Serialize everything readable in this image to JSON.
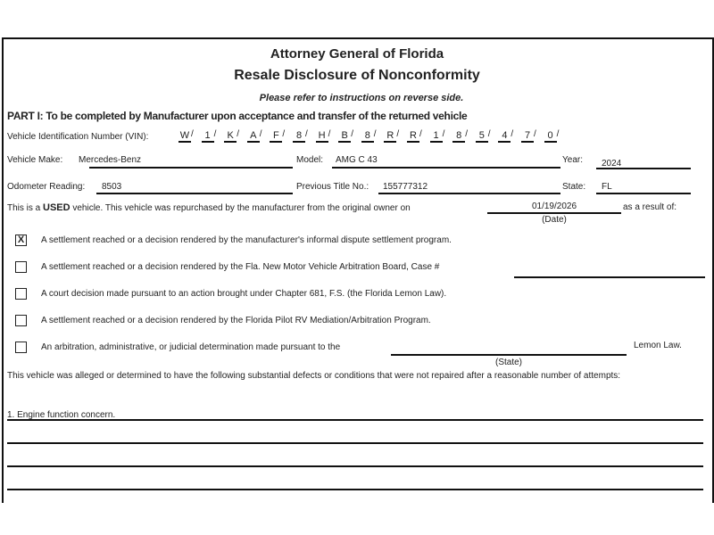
{
  "header": {
    "title": "Attorney General of Florida",
    "subtitle": "Resale Disclosure of Nonconformity",
    "note": "Please refer to instructions on reverse side."
  },
  "part1": "PART I: To be completed by Manufacturer upon acceptance and transfer of the returned vehicle",
  "vin": {
    "label": "Vehicle Identification Number (VIN):",
    "chars": [
      "W",
      "1",
      "K",
      "A",
      "F",
      "8",
      "H",
      "B",
      "8",
      "R",
      "R",
      "1",
      "8",
      "5",
      "4",
      "7",
      "0"
    ]
  },
  "make": {
    "label": "Vehicle Make:",
    "value": "Mercedes-Benz"
  },
  "model": {
    "label": "Model:",
    "value": "AMG C 43"
  },
  "year": {
    "label": "Year:",
    "value": "2024"
  },
  "odometer": {
    "label": "Odometer Reading:",
    "value": "8503"
  },
  "title_no": {
    "label": "Previous Title No.:",
    "value": "155777312"
  },
  "state": {
    "label": "State:",
    "value": "FL"
  },
  "used": {
    "pre": "This is a ",
    "bold": "USED",
    "post": " vehicle. This vehicle was repurchased by the manufacturer from the original owner on",
    "date": "01/19/2026",
    "date_label": "(Date)",
    "suffix": "as a result of:"
  },
  "options": [
    {
      "checked": true,
      "mark": "X",
      "text": "A settlement reached or a decision rendered by the manufacturer's informal dispute settlement program."
    },
    {
      "checked": false,
      "text": "A settlement reached or a decision rendered by the Fla. New Motor Vehicle Arbitration Board, Case #"
    },
    {
      "checked": false,
      "text": "A court decision made pursuant to an action brought under Chapter 681, F.S. (the Florida Lemon Law)."
    },
    {
      "checked": false,
      "text": "A settlement reached or a decision rendered by the Florida Pilot RV Mediation/Arbitration Program."
    },
    {
      "checked": false,
      "text": "An arbitration, administrative, or judicial determination made pursuant to the"
    }
  ],
  "lemon_law": "Lemon Law.",
  "state_label": "(State)",
  "defects_intro": "This vehicle was alleged or determined to have the following substantial defects or conditions that were not repaired after a reasonable number of attempts:",
  "defects": [
    "1. Engine function concern."
  ]
}
